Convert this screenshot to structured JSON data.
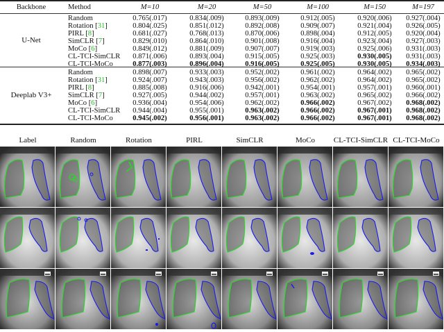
{
  "table": {
    "headers": {
      "backbone": "Backbone",
      "method": "Method",
      "m_values": [
        "M=10",
        "M=20",
        "M=50",
        "M=100",
        "M=150",
        "M=197"
      ]
    },
    "groups": [
      {
        "backbone": "U-Net",
        "rows": [
          {
            "method": "Random",
            "ref": "",
            "values": [
              "0.765(.017)",
              "0.834(.009)",
              "0.893(.009)",
              "0.912(.005)",
              "0.920(.006)",
              "0.927(.004)"
            ],
            "bold": [
              false,
              false,
              false,
              false,
              false,
              false
            ]
          },
          {
            "method": "Rotation",
            "ref": "[31]",
            "values": [
              "0.804(.025)",
              "0.851(.012)",
              "0.892(.008)",
              "0.909(.007)",
              "0.921(.004)",
              "0.926(.005)"
            ],
            "bold": [
              false,
              false,
              false,
              false,
              false,
              false
            ]
          },
          {
            "method": "PIRL",
            "ref": "[8]",
            "values": [
              "0.681(.027)",
              "0.768(.013)",
              "0.870(.006)",
              "0.898(.004)",
              "0.912(.005)",
              "0.920(.004)"
            ],
            "bold": [
              false,
              false,
              false,
              false,
              false,
              false
            ]
          },
          {
            "method": "SimCLR",
            "ref": "[7]",
            "values": [
              "0.829(.010)",
              "0.864(.010)",
              "0.901(.008)",
              "0.916(.004)",
              "0.923(.004)",
              "0.927(.003)"
            ],
            "bold": [
              false,
              false,
              false,
              false,
              false,
              false
            ]
          },
          {
            "method": "MoCo",
            "ref": "[6]",
            "values": [
              "0.849(.012)",
              "0.881(.009)",
              "0.907(.007)",
              "0.919(.003)",
              "0.925(.006)",
              "0.931(.003)"
            ],
            "bold": [
              false,
              false,
              false,
              false,
              false,
              false
            ]
          },
          {
            "method": "CL-TCI-SimCLR",
            "ref": "",
            "values": [
              "0.871(.006)",
              "0.893(.004)",
              "0.915(.005)",
              "0.925(.003)",
              "0.930(.005)",
              "0.931(.003)"
            ],
            "bold": [
              false,
              false,
              false,
              false,
              true,
              false
            ]
          },
          {
            "method": "CL-TCI-MoCo",
            "ref": "",
            "values": [
              "0.877(.003)",
              "0.896(.004)",
              "0.916(.005)",
              "0.925(.005)",
              "0.930(.005)",
              "0.934(.003)"
            ],
            "bold": [
              true,
              true,
              true,
              true,
              true,
              true
            ]
          }
        ]
      },
      {
        "backbone": "Deeplab V3+",
        "rows": [
          {
            "method": "Random",
            "ref": "",
            "values": [
              "0.898(.007)",
              "0.933(.003)",
              "0.952(.002)",
              "0.961(.002)",
              "0.964(.002)",
              "0.965(.002)"
            ],
            "bold": [
              false,
              false,
              false,
              false,
              false,
              false
            ]
          },
          {
            "method": "Rotation",
            "ref": "[31]",
            "values": [
              "0.924(.007)",
              "0.943(.003)",
              "0.956(.002)",
              "0.962(.002)",
              "0.964(.002)",
              "0.965(.002)"
            ],
            "bold": [
              false,
              false,
              false,
              false,
              false,
              false
            ]
          },
          {
            "method": "PIRL",
            "ref": "[8]",
            "values": [
              "0.885(.008)",
              "0.916(.006)",
              "0.942(.001)",
              "0.954(.001)",
              "0.957(.001)",
              "0.960(.001)"
            ],
            "bold": [
              false,
              false,
              false,
              false,
              false,
              false
            ]
          },
          {
            "method": "SimCLR",
            "ref": "[7]",
            "values": [
              "0.927(.005)",
              "0.944(.002)",
              "0.957(.001)",
              "0.963(.002)",
              "0.965(.002)",
              "0.966(.002)"
            ],
            "bold": [
              false,
              false,
              false,
              false,
              false,
              false
            ]
          },
          {
            "method": "MoCo",
            "ref": "[6]",
            "values": [
              "0.936(.004)",
              "0.954(.006)",
              "0.962(.002)",
              "0.966(.002)",
              "0.967(.002)",
              "0.968(.002)"
            ],
            "bold": [
              false,
              false,
              false,
              true,
              false,
              true
            ]
          },
          {
            "method": "CL-TCI-SimCLR",
            "ref": "",
            "values": [
              "0.944(.004)",
              "0.955(.001)",
              "0.963(.002)",
              "0.966(.002)",
              "0.967(.001)",
              "0.968(.002)"
            ],
            "bold": [
              false,
              false,
              true,
              true,
              true,
              true
            ]
          },
          {
            "method": "CL-TCI-MoCo",
            "ref": "",
            "values": [
              "0.945(.002)",
              "0.956(.001)",
              "0.963(.002)",
              "0.966(.002)",
              "0.967(.001)",
              "0.968(.002)"
            ],
            "bold": [
              true,
              true,
              true,
              true,
              true,
              true
            ]
          }
        ]
      }
    ]
  },
  "figure": {
    "column_titles": [
      "Label",
      "Random",
      "Rotation",
      "PIRL",
      "SimCLR",
      "MoCo",
      "CL-TCI-SimCLR",
      "CL-TCI-MoCo"
    ],
    "rows": 3,
    "colors": {
      "left_lung": "#22dd22",
      "right_lung": "#1a1aee",
      "reference_link": "#22bb22"
    }
  }
}
